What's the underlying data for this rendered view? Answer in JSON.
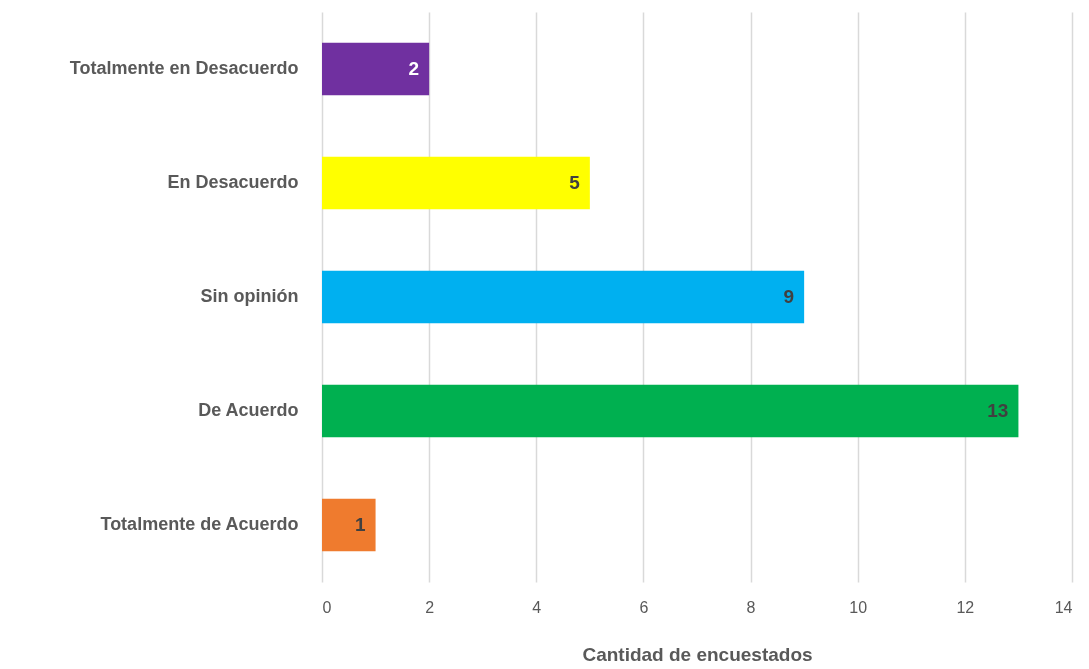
{
  "chart_data": {
    "type": "bar",
    "orientation": "horizontal",
    "categories": [
      "Totalmente en Desacuerdo",
      "En Desacuerdo",
      "Sin opinión",
      "De Acuerdo",
      "Totalmente de Acuerdo"
    ],
    "values": [
      2,
      5,
      9,
      13,
      1
    ],
    "colors": [
      "#7030a0",
      "#ffff00",
      "#00b0f0",
      "#00b050",
      "#ef7b2e"
    ],
    "xlabel": "Cantidad de encuestados",
    "xlim": [
      0,
      14
    ],
    "xticks": [
      0,
      2,
      4,
      6,
      8,
      10,
      12,
      14
    ],
    "grid": "x",
    "data_labels": true
  }
}
